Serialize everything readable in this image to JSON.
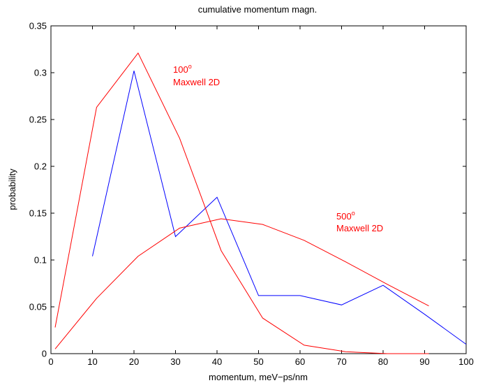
{
  "chart_data": {
    "type": "line",
    "title": "cumulative momentum magn.",
    "xlabel": "momentum, meV−ps/nm",
    "ylabel": "probability",
    "xlim": [
      0,
      100
    ],
    "ylim": [
      0,
      0.35
    ],
    "xticks": [
      0,
      10,
      20,
      30,
      40,
      50,
      60,
      70,
      80,
      90,
      100
    ],
    "yticks": [
      0,
      0.05,
      0.1,
      0.15,
      0.2,
      0.25,
      0.3,
      0.35
    ],
    "ytick_labels": [
      "0",
      "0.05",
      "0.1",
      "0.15",
      "0.2",
      "0.25",
      "0.3",
      "0.35"
    ],
    "grid": false,
    "series": [
      {
        "color": "#0000ff",
        "x": [
          10,
          20,
          30,
          40,
          50,
          60,
          70,
          80,
          90,
          100
        ],
        "y": [
          0.104,
          0.302,
          0.125,
          0.167,
          0.062,
          0.062,
          0.052,
          0.073,
          0.042,
          0.01
        ]
      },
      {
        "color": "#ff0000",
        "x": [
          1,
          11,
          21,
          31,
          41,
          51,
          61,
          71,
          81,
          91
        ],
        "y": [
          0.028,
          0.263,
          0.321,
          0.23,
          0.11,
          0.038,
          0.009,
          0.002,
          0.0,
          0.0
        ]
      },
      {
        "color": "#ff0000",
        "x": [
          1,
          11,
          21,
          31,
          41,
          51,
          61,
          71,
          81,
          91
        ],
        "y": [
          0.005,
          0.059,
          0.104,
          0.134,
          0.144,
          0.138,
          0.121,
          0.098,
          0.074,
          0.051
        ]
      }
    ],
    "annotations": [
      {
        "label": "100",
        "sup": "o",
        "sub": "Maxwell 2D",
        "color": "#ff0000"
      },
      {
        "label": "500",
        "sup": "o",
        "sub": "Maxwell 2D",
        "color": "#ff0000"
      }
    ]
  }
}
